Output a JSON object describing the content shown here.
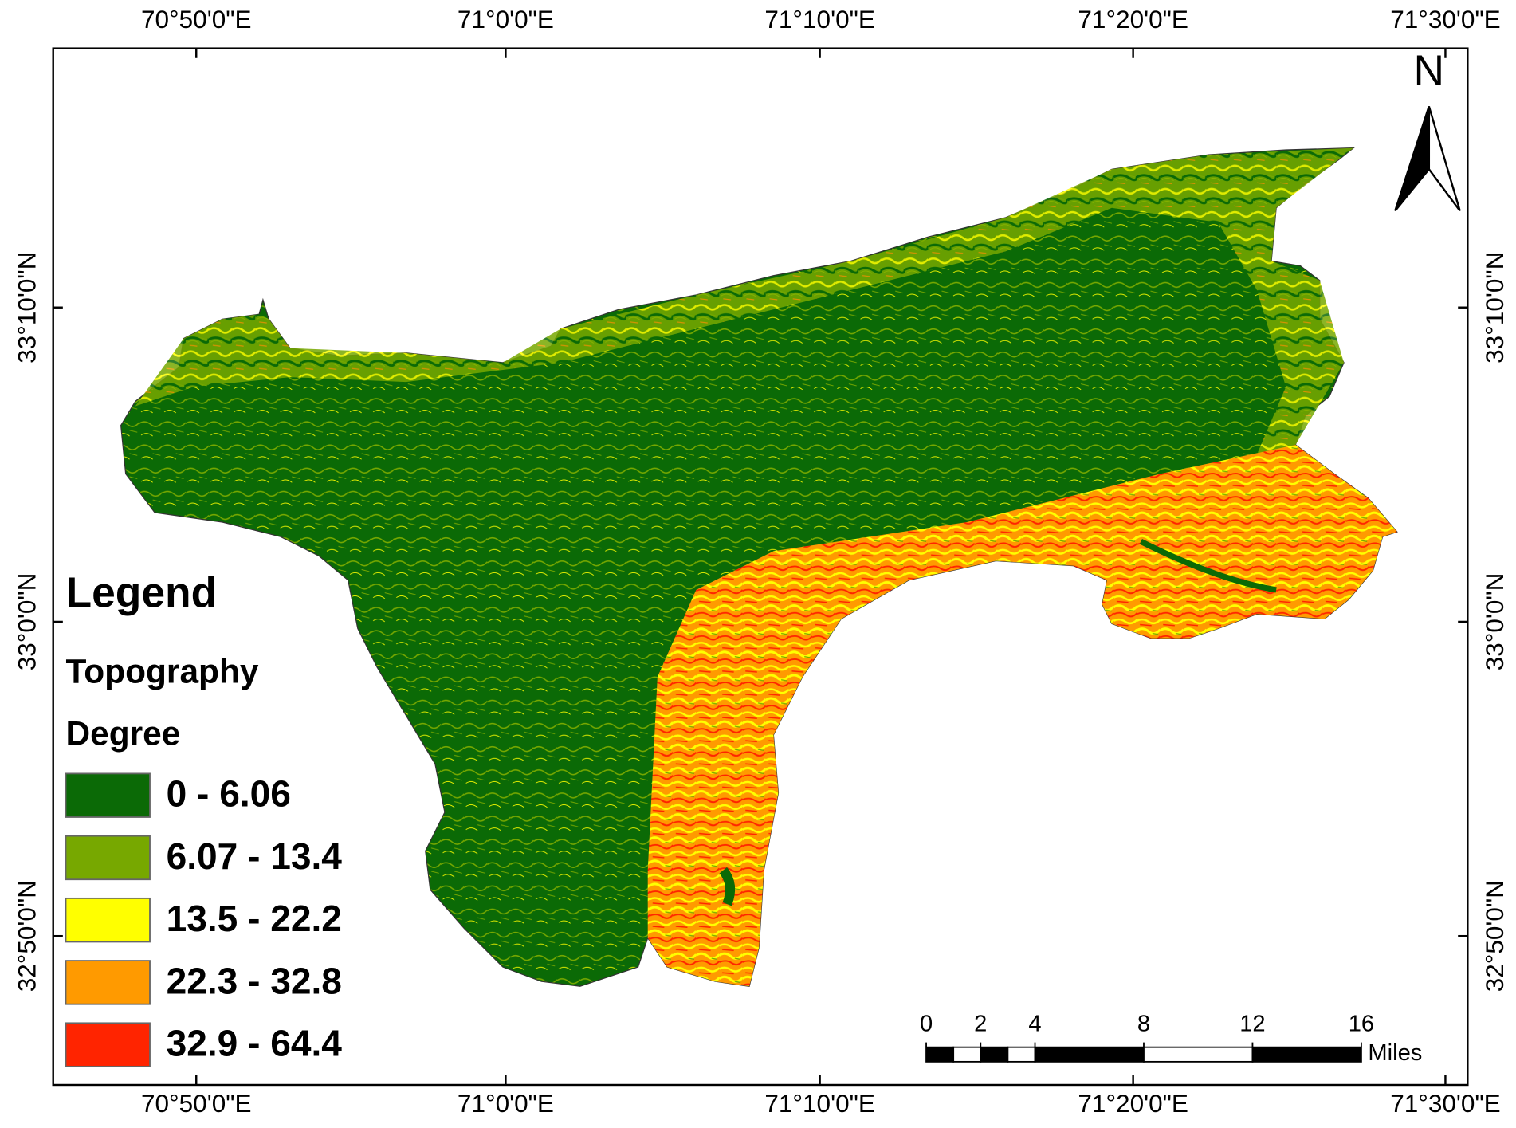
{
  "map": {
    "lon_labels": [
      "70°50'0\"E",
      "71°0'0\"E",
      "71°10'0\"E",
      "71°20'0\"E",
      "71°30'0\"E"
    ],
    "lat_labels": [
      "33°10'0\"N",
      "33°0'0\"N",
      "32°50'0\"N"
    ],
    "north": "N",
    "legend": {
      "title": "Legend",
      "layer": "Topography",
      "field": "Degree",
      "classes": [
        {
          "label": "0 - 6.06",
          "color": "#0b6a06"
        },
        {
          "label": "6.07 - 13.4",
          "color": "#77a800"
        },
        {
          "label": "13.5 - 22.2",
          "color": "#ffff00"
        },
        {
          "label": "22.3 - 32.8",
          "color": "#ff9a00"
        },
        {
          "label": "32.9 - 64.4",
          "color": "#ff2400"
        }
      ]
    },
    "scale_bar": {
      "ticks": [
        0,
        2,
        4,
        8,
        12,
        16
      ],
      "unit": "Miles"
    }
  }
}
